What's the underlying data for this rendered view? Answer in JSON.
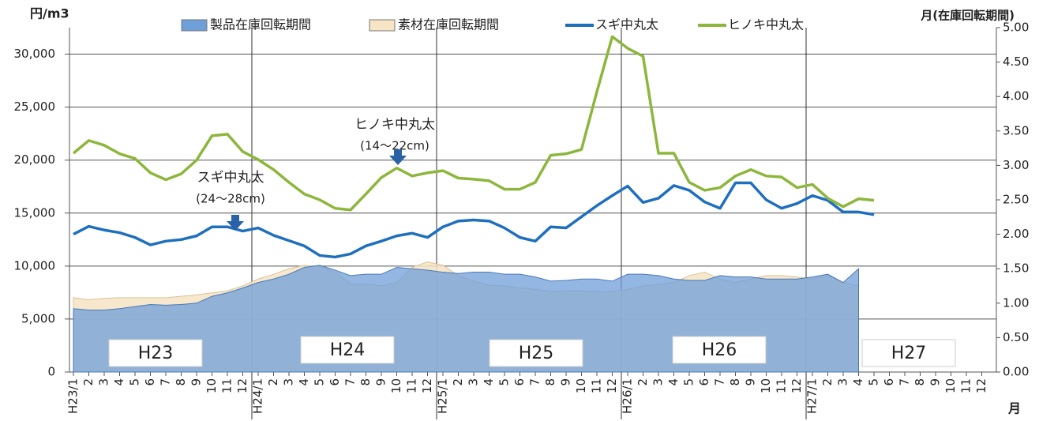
{
  "chart_data": {
    "type": "combo",
    "y_label": "円/m3",
    "y2_label": "月(在庫回転期間)",
    "x_label": "月",
    "categories": [
      "H23/1",
      "2",
      "3",
      "4",
      "5",
      "6",
      "7",
      "8",
      "9",
      "10",
      "11",
      "12",
      "H24/1",
      "2",
      "3",
      "4",
      "5",
      "6",
      "7",
      "8",
      "9",
      "10",
      "11",
      "12",
      "H25/1",
      "2",
      "3",
      "4",
      "5",
      "6",
      "7",
      "8",
      "9",
      "10",
      "11",
      "12",
      "H26/1",
      "2",
      "3",
      "4",
      "5",
      "6",
      "7",
      "8",
      "9",
      "10",
      "11",
      "12",
      "H27/1",
      "2",
      "3",
      "4",
      "5",
      "6",
      "7",
      "8",
      "9",
      "10",
      "11",
      "12"
    ],
    "ylim": [
      0,
      32500
    ],
    "yticks": [
      0,
      {
        "value": 5000,
        "label": "5,000"
      },
      {
        "value": 10000,
        "label": "10,000"
      },
      {
        "value": 15000,
        "label": "15,000"
      },
      {
        "value": 20000,
        "label": "20,000"
      },
      {
        "value": 25000,
        "label": "25,000"
      },
      {
        "value": 30000,
        "label": "30,000"
      }
    ],
    "y2lim": [
      0,
      5
    ],
    "y2ticks": [
      {
        "value": 0,
        "label": "0.00"
      },
      {
        "value": 0.5,
        "label": "0.50"
      },
      {
        "value": 1,
        "label": "1.00"
      },
      {
        "value": 1.5,
        "label": "1.50"
      },
      {
        "value": 2,
        "label": "2.00"
      },
      {
        "value": 2.5,
        "label": "2.50"
      },
      {
        "value": 3,
        "label": "3.00"
      },
      {
        "value": 3.5,
        "label": "3.50"
      },
      {
        "value": 4,
        "label": "4.00"
      },
      {
        "value": 4.5,
        "label": "4.50"
      },
      {
        "value": 5,
        "label": "5.00"
      }
    ],
    "grid": true,
    "series": [
      {
        "name": "製品在庫回転期間",
        "type": "area",
        "axis": "y2",
        "color": "#6f9fd8",
        "values": [
          0.92,
          0.9,
          0.9,
          0.92,
          0.95,
          0.98,
          0.97,
          0.98,
          1.0,
          1.1,
          1.15,
          1.22,
          1.3,
          1.35,
          1.42,
          1.52,
          1.55,
          1.48,
          1.4,
          1.42,
          1.42,
          1.52,
          1.5,
          1.48,
          1.45,
          1.43,
          1.45,
          1.45,
          1.42,
          1.42,
          1.38,
          1.32,
          1.33,
          1.35,
          1.35,
          1.32,
          1.42,
          1.42,
          1.4,
          1.35,
          1.33,
          1.33,
          1.4,
          1.38,
          1.38,
          1.35,
          1.35,
          1.35,
          1.38,
          1.42,
          1.3,
          1.5,
          null,
          null,
          null,
          null,
          null,
          null,
          null,
          null
        ]
      },
      {
        "name": "素材在庫回転期間",
        "type": "area",
        "axis": "y2",
        "color": "#f6e4c4",
        "values": [
          1.08,
          1.05,
          1.07,
          1.08,
          1.08,
          1.08,
          1.08,
          1.1,
          1.12,
          1.15,
          1.18,
          1.25,
          1.35,
          1.42,
          1.5,
          1.55,
          1.53,
          1.45,
          1.28,
          1.28,
          1.25,
          1.3,
          1.52,
          1.6,
          1.55,
          1.4,
          1.32,
          1.26,
          1.25,
          1.22,
          1.2,
          1.17,
          1.18,
          1.18,
          1.17,
          1.17,
          1.2,
          1.25,
          1.27,
          1.3,
          1.4,
          1.45,
          1.35,
          1.3,
          1.35,
          1.4,
          1.4,
          1.38,
          1.35,
          1.4,
          1.3,
          1.25,
          null,
          null,
          null,
          null,
          null,
          null,
          null,
          null
        ]
      },
      {
        "name": "スギ中丸太",
        "type": "line",
        "color": "#1f6fbf",
        "values": [
          13000,
          13750,
          13400,
          13150,
          12700,
          12000,
          12350,
          12500,
          12850,
          13700,
          13700,
          13300,
          13600,
          12900,
          12400,
          11900,
          11000,
          10850,
          11150,
          11900,
          12350,
          12850,
          13100,
          12700,
          13700,
          14250,
          14350,
          14250,
          13600,
          12700,
          12350,
          13700,
          13600,
          14650,
          15700,
          16650,
          17550,
          16000,
          16400,
          17600,
          17150,
          16050,
          15450,
          17850,
          17850,
          16250,
          15450,
          15900,
          16650,
          16200,
          15100,
          15100,
          14850,
          null,
          null,
          null,
          null,
          null,
          null,
          null
        ]
      },
      {
        "name": "ヒノキ中丸太",
        "type": "line",
        "color": "#8db63c",
        "values": [
          20650,
          21850,
          21400,
          20600,
          20150,
          18800,
          18150,
          18700,
          20000,
          22300,
          22450,
          20800,
          20050,
          19100,
          17900,
          16800,
          16250,
          15450,
          15300,
          16800,
          18350,
          19250,
          18500,
          18800,
          19000,
          18300,
          18200,
          18050,
          17250,
          17250,
          17900,
          20450,
          20600,
          21000,
          26450,
          31650,
          30550,
          29800,
          20650,
          20650,
          17900,
          17150,
          17400,
          18500,
          19100,
          18500,
          18400,
          17400,
          17700,
          16400,
          15600,
          16350,
          16200,
          null,
          null,
          null,
          null,
          null,
          null,
          null
        ]
      }
    ],
    "annotations": [
      {
        "lines": [
          "スギ中丸太",
          "(24～28cm)"
        ]
      },
      {
        "lines": [
          "ヒノキ中丸太",
          "(14～22cm)"
        ]
      }
    ],
    "period_labels": [
      "H23",
      "H24",
      "H25",
      "H26",
      "H27"
    ]
  }
}
